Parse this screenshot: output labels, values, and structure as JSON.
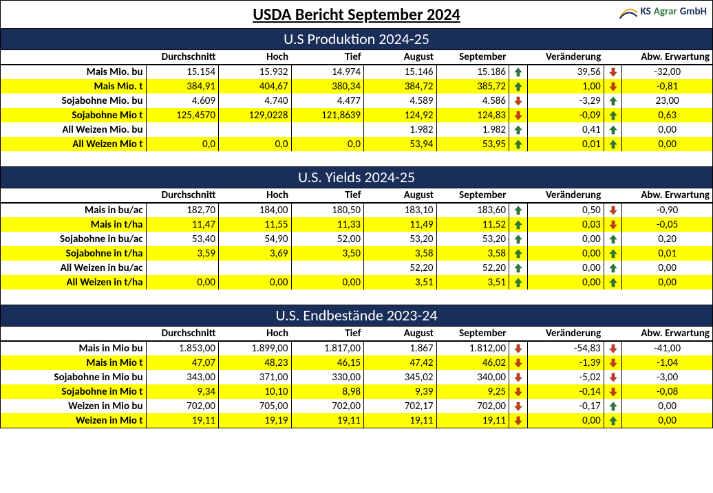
{
  "title": "USDA Bericht September 2024",
  "logo": {
    "ks": "KS",
    "agrar": "Agrar",
    "gmbh": "GmbH"
  },
  "colors": {
    "header_bg": "#1a2e5a",
    "header_fg": "#ffffff",
    "highlight": "#ffff00",
    "arrow_up": "#2b7a3d",
    "arrow_down": "#cc3b1f"
  },
  "column_headers": {
    "durchschnitt": "Durchschnitt",
    "hoch": "Hoch",
    "tief": "Tief",
    "august": "August",
    "september": "September",
    "veraenderung": "Veränderung",
    "abw_erwartung": "Abw. Erwartung"
  },
  "sections": [
    {
      "title": "U.S Produktion 2024-25",
      "rows": [
        {
          "label": "Mais Mio. bu",
          "d": "15.154",
          "h": "15.932",
          "t": "14.974",
          "aug": "15.146",
          "sep": "15.186",
          "dir1": "up",
          "chg": "39,56",
          "dir2": "down",
          "exp": "-32,00",
          "hl": false
        },
        {
          "label": "Mais Mio. t",
          "d": "384,91",
          "h": "404,67",
          "t": "380,34",
          "aug": "384,72",
          "sep": "385,72",
          "dir1": "up",
          "chg": "1,00",
          "dir2": "down",
          "exp": "-0,81",
          "hl": true
        },
        {
          "label": "Sojabohne Mio. bu",
          "d": "4.609",
          "h": "4.740",
          "t": "4.477",
          "aug": "4.589",
          "sep": "4.586",
          "dir1": "down",
          "chg": "-3,29",
          "dir2": "up",
          "exp": "23,00",
          "hl": false
        },
        {
          "label": "Sojabohne Mio t",
          "d": "125,4570",
          "h": "129,0228",
          "t": "121,8639",
          "aug": "124,92",
          "sep": "124,83",
          "dir1": "down",
          "chg": "-0,09",
          "dir2": "up",
          "exp": "0,63",
          "hl": true
        },
        {
          "label": "All Weizen Mio. bu",
          "d": "",
          "h": "",
          "t": "",
          "aug": "1.982",
          "sep": "1.982",
          "dir1": "up",
          "chg": "0,41",
          "dir2": "up",
          "exp": "0,00",
          "hl": false
        },
        {
          "label": "All Weizen Mio t",
          "d": "0,0",
          "h": "0,0",
          "t": "0,0",
          "aug": "53,94",
          "sep": "53,95",
          "dir1": "up",
          "chg": "0,01",
          "dir2": "up",
          "exp": "0,00",
          "hl": true
        }
      ]
    },
    {
      "title": "U.S. Yields 2024-25",
      "rows": [
        {
          "label": "Mais in bu/ac",
          "d": "182,70",
          "h": "184,00",
          "t": "180,50",
          "aug": "183,10",
          "sep": "183,60",
          "dir1": "up",
          "chg": "0,50",
          "dir2": "down",
          "exp": "-0,90",
          "hl": false
        },
        {
          "label": "Mais in t/ha",
          "d": "11,47",
          "h": "11,55",
          "t": "11,33",
          "aug": "11,49",
          "sep": "11,52",
          "dir1": "up",
          "chg": "0,03",
          "dir2": "down",
          "exp": "-0,05",
          "hl": true
        },
        {
          "label": "Sojabohne in bu/ac",
          "d": "53,40",
          "h": "54,90",
          "t": "52,00",
          "aug": "53,20",
          "sep": "53,20",
          "dir1": "up",
          "chg": "0,00",
          "dir2": "up",
          "exp": "0,20",
          "hl": false
        },
        {
          "label": "Sojabohne in t/ha",
          "d": "3,59",
          "h": "3,69",
          "t": "3,50",
          "aug": "3,58",
          "sep": "3,58",
          "dir1": "up",
          "chg": "0,00",
          "dir2": "up",
          "exp": "0,01",
          "hl": true
        },
        {
          "label": "All Weizen in bu/ac",
          "d": "",
          "h": "",
          "t": "",
          "aug": "52,20",
          "sep": "52,20",
          "dir1": "up",
          "chg": "0,00",
          "dir2": "up",
          "exp": "0,00",
          "hl": false
        },
        {
          "label": "All Weizen in t/ha",
          "d": "0,00",
          "h": "0,00",
          "t": "0,00",
          "aug": "3,51",
          "sep": "3,51",
          "dir1": "up",
          "chg": "0,00",
          "dir2": "up",
          "exp": "0,00",
          "hl": true
        }
      ]
    },
    {
      "title": "U.S. Endbestände  2023-24",
      "rows": [
        {
          "label": "Mais in Mio bu",
          "d": "1.853,00",
          "h": "1.899,00",
          "t": "1.817,00",
          "aug": "1.867",
          "sep": "1.812,00",
          "dir1": "down",
          "chg": "-54,83",
          "dir2": "down",
          "exp": "-41,00",
          "hl": false
        },
        {
          "label": "Mais in Mio t",
          "d": "47,07",
          "h": "48,23",
          "t": "46,15",
          "aug": "47,42",
          "sep": "46,02",
          "dir1": "down",
          "chg": "-1,39",
          "dir2": "down",
          "exp": "-1,04",
          "hl": true
        },
        {
          "label": "Sojabohne in Mio bu",
          "d": "343,00",
          "h": "371,00",
          "t": "330,00",
          "aug": "345,02",
          "sep": "340,00",
          "dir1": "down",
          "chg": "-5,02",
          "dir2": "down",
          "exp": "-3,00",
          "hl": false
        },
        {
          "label": "Sojabohne in Mio t",
          "d": "9,34",
          "h": "10,10",
          "t": "8,98",
          "aug": "9,39",
          "sep": "9,25",
          "dir1": "down",
          "chg": "-0,14",
          "dir2": "down",
          "exp": "-0,08",
          "hl": true
        },
        {
          "label": "Weizen in Mio bu",
          "d": "702,00",
          "h": "705,00",
          "t": "702,00",
          "aug": "702,17",
          "sep": "702,00",
          "dir1": "down",
          "chg": "-0,17",
          "dir2": "up",
          "exp": "0,00",
          "hl": false
        },
        {
          "label": "Weizen in Mio t",
          "d": "19,11",
          "h": "19,19",
          "t": "19,11",
          "aug": "19,11",
          "sep": "19,11",
          "dir1": "down",
          "chg": "0,00",
          "dir2": "up",
          "exp": "0,00",
          "hl": true
        }
      ]
    }
  ]
}
